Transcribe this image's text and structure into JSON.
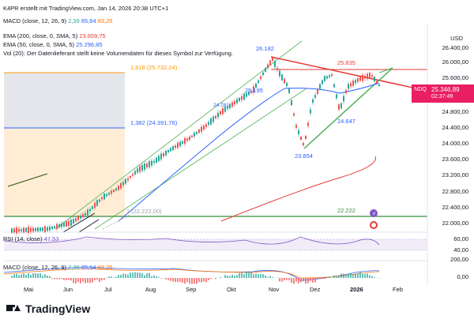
{
  "header": {
    "credit": "K4PR erstellt mit TradingView.com, Jan 14, 2026 20:38 UTC+1",
    "macd_top": {
      "label": "MACD (close, 12, 26, 9)",
      "v0": "2,39",
      "v1": "85,64",
      "v2": "83,25"
    }
  },
  "legend": {
    "ema200": {
      "label": "EMA (200, close, 0, SMA, 5)",
      "value": "23.659,75"
    },
    "ema50": {
      "label": "EMA (50, close, 0, SMA, 5)",
      "value": "25.296,85"
    },
    "vol": "Vol (20): Der Datenlieferant stellt keine Volumendaten für dieses Symbol zur Verfügung."
  },
  "yaxis": {
    "currency": "USD",
    "labels": [
      "26.400,00",
      "26.000,00",
      "25.600,00",
      "24.800,00",
      "24.400,00",
      "24.000,00",
      "23.600,00",
      "23.200,00",
      "22.800,00",
      "22.400,00",
      "22.000,00"
    ],
    "rsi_labels": [
      "60,00",
      "40,00"
    ],
    "macd_labels": [
      "200,00",
      "0,00"
    ]
  },
  "xaxis": {
    "labels": [
      "Mai",
      "Jun",
      "Jul",
      "Aug",
      "Sep",
      "Okt",
      "Nov",
      "Dez",
      "2026",
      "Feb"
    ]
  },
  "price_tag": {
    "symbol": "NDQ",
    "value": "25.346,89",
    "countdown": "02:37:49"
  },
  "annotations": {
    "high1": "26.182",
    "high2": "25.835",
    "mid1": "25.195",
    "mid2": "24.781",
    "low1": "23.854",
    "low2": "24.647",
    "support": "22.222"
  },
  "fib": {
    "f1618": "1,618 (25.732,24)",
    "f1382": "1,382 (24.391,76)",
    "f1": "1 (22.222,00)"
  },
  "rsi": {
    "label": "RSI (14, close)",
    "value": "47,53"
  },
  "macd_bottom": {
    "label": "MACD (close, 12, 26, 9)",
    "v0": "2,39",
    "v1": "85,64",
    "v2": "83,25"
  },
  "footer": {
    "brand": "TradingView"
  },
  "colors": {
    "up": "#26a69a",
    "down": "#ef5350",
    "ema50": "#2962ff",
    "ema200": "#e53935",
    "channel": "#4caf50",
    "trend_red": "#e53935",
    "price_tag": "#e91e63"
  }
}
